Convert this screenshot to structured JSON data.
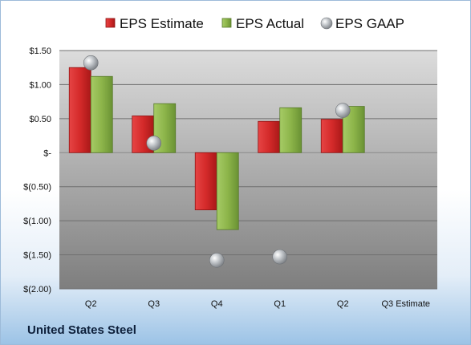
{
  "company": "United States Steel",
  "chart_data": {
    "type": "bar",
    "title": "",
    "xlabel": "",
    "ylabel": "",
    "categories": [
      "Q2",
      "Q3",
      "Q4",
      "Q1",
      "Q2",
      "Q3 Estimate"
    ],
    "ylim": [
      -2.0,
      1.5
    ],
    "yticks": [
      1.5,
      1.0,
      0.5,
      0,
      -0.5,
      -1.0,
      -1.5,
      -2.0
    ],
    "ytick_labels": [
      "$1.50",
      "$1.00",
      "$0.50",
      "$-",
      "$(0.50)",
      "$(1.00)",
      "$(1.50)",
      "$(2.00)"
    ],
    "grid": true,
    "legend_position": "top",
    "series": [
      {
        "name": "EPS Estimate",
        "kind": "bar",
        "color": "#d42a2a",
        "values": [
          1.25,
          0.54,
          -0.84,
          0.46,
          0.49,
          null
        ]
      },
      {
        "name": "EPS Actual",
        "kind": "bar",
        "color": "#8db54a",
        "values": [
          1.12,
          0.72,
          -1.13,
          0.66,
          0.68,
          null
        ]
      },
      {
        "name": "EPS GAAP",
        "kind": "marker",
        "color": "#b8bcc0",
        "values": [
          1.32,
          0.14,
          -1.58,
          -1.53,
          0.62,
          null
        ]
      }
    ]
  }
}
